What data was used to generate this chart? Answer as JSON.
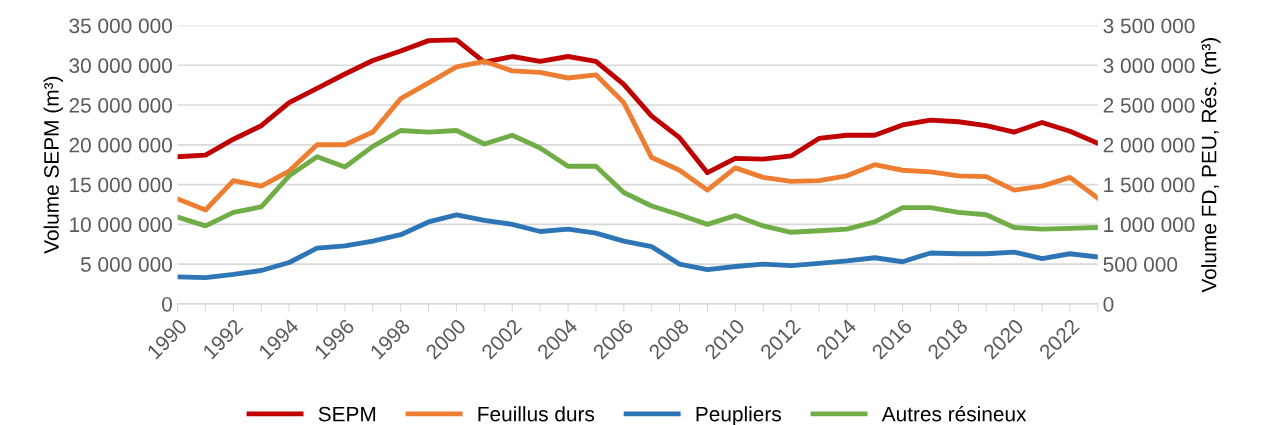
{
  "chart_data": {
    "type": "line",
    "x": [
      1990,
      1991,
      1992,
      1993,
      1994,
      1995,
      1996,
      1997,
      1998,
      1999,
      2000,
      2001,
      2002,
      2003,
      2004,
      2005,
      2006,
      2007,
      2008,
      2009,
      2010,
      2011,
      2012,
      2013,
      2014,
      2015,
      2016,
      2017,
      2018,
      2019,
      2020,
      2021,
      2022,
      2023
    ],
    "series": [
      {
        "name": "SEPM",
        "color": "#c00000",
        "values": [
          18500000,
          18700000,
          20700000,
          22400000,
          25300000,
          27100000,
          28900000,
          30600000,
          31800000,
          33100000,
          33200000,
          30400000,
          31100000,
          30500000,
          31100000,
          30500000,
          27600000,
          23600000,
          20900000,
          16500000,
          18300000,
          18200000,
          18600000,
          20800000,
          21200000,
          21200000,
          22500000,
          23100000,
          22900000,
          22400000,
          21600000,
          22800000,
          21700000,
          20200000
        ]
      },
      {
        "name": "Feuillus durs",
        "color": "#ed7d31",
        "axis": "y2",
        "values": [
          1320000,
          1180000,
          1550000,
          1480000,
          1670000,
          2000000,
          2000000,
          2160000,
          2580000,
          2780000,
          2980000,
          3050000,
          2930000,
          2910000,
          2840000,
          2880000,
          2530000,
          1840000,
          1680000,
          1430000,
          1710000,
          1590000,
          1540000,
          1550000,
          1610000,
          1750000,
          1680000,
          1660000,
          1610000,
          1600000,
          1430000,
          1480000,
          1590000,
          1330000
        ]
      },
      {
        "name": "Peupliers",
        "color": "#2e75b6",
        "axis": "y2",
        "values": [
          340000,
          330000,
          370000,
          420000,
          520000,
          700000,
          730000,
          790000,
          870000,
          1030000,
          1120000,
          1050000,
          1000000,
          910000,
          940000,
          890000,
          790000,
          720000,
          500000,
          430000,
          470000,
          500000,
          480000,
          510000,
          540000,
          580000,
          530000,
          640000,
          630000,
          630000,
          650000,
          570000,
          630000,
          590000
        ]
      },
      {
        "name": "Autres résineux",
        "color": "#70ad47",
        "axis": "y2",
        "values": [
          1090000,
          980000,
          1150000,
          1220000,
          1610000,
          1850000,
          1720000,
          1980000,
          2180000,
          2160000,
          2180000,
          2010000,
          2120000,
          1960000,
          1730000,
          1730000,
          1400000,
          1230000,
          1120000,
          1000000,
          1110000,
          980000,
          900000,
          920000,
          940000,
          1030000,
          1210000,
          1210000,
          1150000,
          1120000,
          960000,
          940000,
          950000,
          960000
        ]
      }
    ],
    "ylabel": "Volume SEPM (m³)",
    "y2label": "Volume FD, PEU, Rés. (m³)",
    "xlim": [
      1990,
      2023
    ],
    "xticks": [
      1990,
      {
        "value": 1991,
        "label": null
      },
      1992,
      {
        "value": 1993,
        "label": null
      },
      1994,
      {
        "value": 1995,
        "label": null
      },
      1996,
      {
        "value": 1997,
        "label": null
      },
      1998,
      {
        "value": 1999,
        "label": null
      },
      2000,
      {
        "value": 2001,
        "label": null
      },
      2002,
      {
        "value": 2003,
        "label": null
      },
      2004,
      {
        "value": 2005,
        "label": null
      },
      2006,
      {
        "value": 2007,
        "label": null
      },
      2008,
      {
        "value": 2009,
        "label": null
      },
      2010,
      {
        "value": 2011,
        "label": null
      },
      2012,
      {
        "value": 2013,
        "label": null
      },
      2014,
      {
        "value": 2015,
        "label": null
      },
      2016,
      {
        "value": 2017,
        "label": null
      },
      2018,
      {
        "value": 2019,
        "label": null
      },
      2020,
      {
        "value": 2021,
        "label": null
      },
      2022,
      {
        "value": 2023,
        "label": null
      }
    ],
    "ylim": [
      0,
      35000000
    ],
    "yticks": [
      0,
      {
        "value": 5000000,
        "label": "5 000 000"
      },
      {
        "value": 10000000,
        "label": "10 000 000"
      },
      {
        "value": 15000000,
        "label": "15 000 000"
      },
      {
        "value": 20000000,
        "label": "20 000 000"
      },
      {
        "value": 25000000,
        "label": "25 000 000"
      },
      {
        "value": 30000000,
        "label": "30 000 000"
      },
      {
        "value": 35000000,
        "label": "35 000 000"
      }
    ],
    "y2lim": [
      0,
      3500000
    ],
    "y2ticks": [
      0,
      {
        "value": 500000,
        "label": "500 000"
      },
      {
        "value": 1000000,
        "label": "1 000 000"
      },
      {
        "value": 1500000,
        "label": "1 500 000"
      },
      {
        "value": 2000000,
        "label": "2 000 000"
      },
      {
        "value": 2500000,
        "label": "2 500 000"
      },
      {
        "value": 3000000,
        "label": "3 000 000"
      },
      {
        "value": 3500000,
        "label": "3 500 000"
      }
    ],
    "grid": "y",
    "legend": "bottom",
    "marker": "none",
    "line_style": "solid"
  }
}
